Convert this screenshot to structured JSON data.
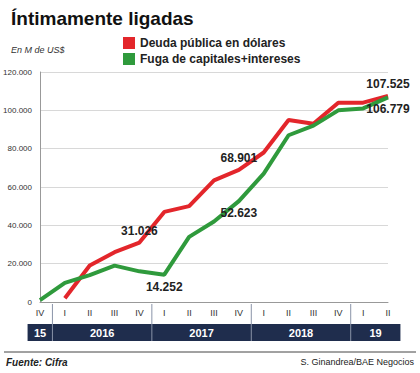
{
  "chart_data": {
    "type": "line",
    "title": "Íntimamente ligadas",
    "subtitle": "En M de US$",
    "source": "Fuente: Cifra",
    "credit": "S. Ginandrea/BAE Negocios",
    "categories": [
      "IV",
      "I",
      "II",
      "III",
      "IV",
      "I",
      "II",
      "III",
      "IV",
      "I",
      "II",
      "III",
      "IV",
      "I",
      "II"
    ],
    "years": [
      "15",
      "2016",
      "2016",
      "2016",
      "2016",
      "2017",
      "2017",
      "2017",
      "2017",
      "2018",
      "2018",
      "2018",
      "2018",
      "19",
      "19"
    ],
    "series": [
      {
        "name": "Deuda pública en dólares",
        "color": "#e3262b",
        "values": [
          null,
          2000,
          19000,
          26000,
          31026,
          47000,
          50000,
          63500,
          68901,
          78000,
          95000,
          93000,
          104000,
          104000,
          107525
        ],
        "value_labels": [
          null,
          null,
          null,
          null,
          "31.026",
          null,
          null,
          null,
          "68.901",
          null,
          null,
          null,
          null,
          null,
          "107.525"
        ]
      },
      {
        "name": "Fuga de capitales+intereses",
        "color": "#2f9a3c",
        "values": [
          1000,
          10000,
          14000,
          19000,
          16000,
          14252,
          34000,
          42000,
          52623,
          67000,
          87000,
          92000,
          100000,
          101000,
          106779
        ],
        "value_labels": [
          null,
          null,
          null,
          null,
          null,
          "14.252",
          null,
          null,
          "52.623",
          null,
          null,
          null,
          null,
          null,
          "106.779"
        ]
      }
    ],
    "ylim": [
      0,
      120000
    ],
    "yticks": [
      0,
      {
        "value": 20000,
        "label": "20.000"
      },
      {
        "value": 40000,
        "label": "40.000"
      },
      {
        "value": 60000,
        "label": "60.000"
      },
      {
        "value": 80000,
        "label": "80.000"
      },
      {
        "value": 100000,
        "label": "100.000"
      },
      {
        "value": 120000,
        "label": "120.000"
      }
    ],
    "grid": true,
    "legend": "top",
    "data_labels": true
  }
}
